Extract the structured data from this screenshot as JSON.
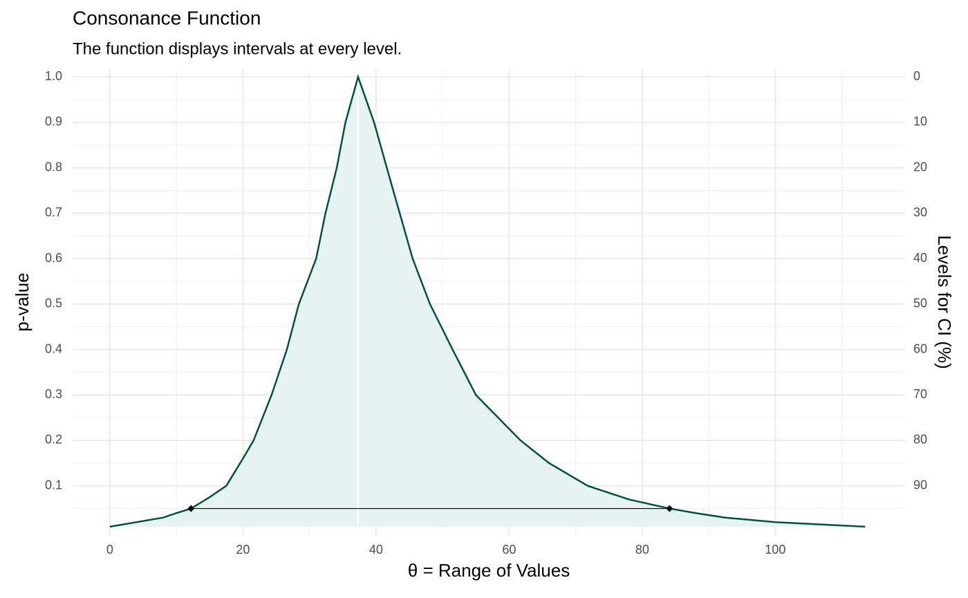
{
  "chart_data": {
    "type": "line",
    "title": "Consonance Function",
    "subtitle": "The function displays intervals at every level.",
    "x_label": "θ =  Range of Values",
    "y_label": "p-value",
    "y2_label": "Levels for CI (%)",
    "x": [
      0,
      8,
      10,
      12.2,
      15,
      17.5,
      20,
      21.6,
      24.3,
      26.6,
      28.4,
      31,
      32.4,
      34.1,
      35.4,
      37.3,
      39.7,
      42,
      45.5,
      48.1,
      51.5,
      55,
      61.7,
      66,
      71.8,
      78,
      84.1,
      88,
      92.5,
      100,
      113.5
    ],
    "series": [
      {
        "name": "p-value",
        "color": "#005240",
        "fill": "#e7f3f1",
        "values": [
          0.01,
          0.03,
          0.04,
          0.05,
          0.075,
          0.1,
          0.16,
          0.2,
          0.3,
          0.4,
          0.5,
          0.6,
          0.7,
          0.8,
          0.9,
          1.0,
          0.9,
          0.78,
          0.6,
          0.5,
          0.4,
          0.3,
          0.2,
          0.15,
          0.1,
          0.07,
          0.05,
          0.04,
          0.03,
          0.02,
          0.01
        ]
      }
    ],
    "interval": {
      "lower": 12.2,
      "upper": 84.1,
      "level": 0.05,
      "color": "#000000"
    },
    "point_estimate": 37.3,
    "xlim": [
      -5.6,
      119.5
    ],
    "xticks": [
      0,
      20,
      40,
      60,
      80,
      100
    ],
    "ylim": [
      -0.01,
      1.017
    ],
    "yticks": [
      0.1,
      0.2,
      0.3,
      0.4,
      0.5,
      0.6,
      0.7,
      0.8,
      0.9,
      {
        "value": 1.0,
        "label": "1.0"
      }
    ],
    "y2lim": [
      101,
      -1.7
    ],
    "y2ticks": [
      0,
      10,
      20,
      30,
      40,
      50,
      60,
      70,
      80,
      90
    ],
    "grid": true
  }
}
